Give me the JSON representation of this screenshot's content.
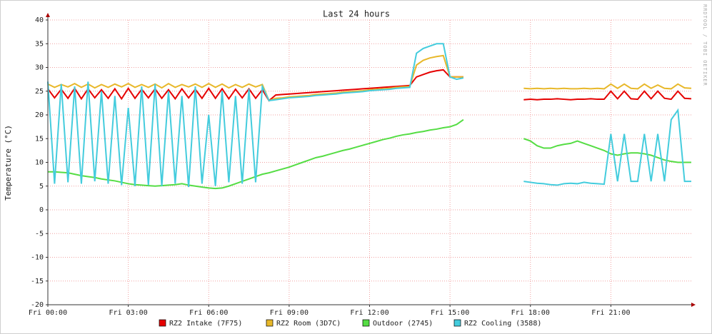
{
  "chart_data": {
    "type": "line",
    "title": "Last 24 hours",
    "y_label": "Temperature (°C)",
    "watermark": "RRDTOOL / TOBI OETIKER",
    "grid": true,
    "xlim": [
      0,
      24
    ],
    "xticks": [
      {
        "value": 0,
        "label": "Fri 00:00"
      },
      {
        "value": 3,
        "label": "Fri 03:00"
      },
      {
        "value": 6,
        "label": "Fri 06:00"
      },
      {
        "value": 9,
        "label": "Fri 09:00"
      },
      {
        "value": 12,
        "label": "Fri 12:00"
      },
      {
        "value": 15,
        "label": "Fri 15:00"
      },
      {
        "value": 18,
        "label": "Fri 18:00"
      },
      {
        "value": 21,
        "label": "Fri 21:00"
      }
    ],
    "ylim": [
      -20,
      40
    ],
    "yticks": [
      -20,
      -15,
      -10,
      -5,
      0,
      5,
      10,
      15,
      20,
      25,
      30,
      35,
      40
    ],
    "x": [
      0,
      0.25,
      0.5,
      0.75,
      1,
      1.25,
      1.5,
      1.75,
      2,
      2.25,
      2.5,
      2.75,
      3,
      3.25,
      3.5,
      3.75,
      4,
      4.25,
      4.5,
      4.75,
      5,
      5.25,
      5.5,
      5.75,
      6,
      6.25,
      6.5,
      6.75,
      7,
      7.25,
      7.5,
      7.75,
      8,
      8.25,
      8.5,
      8.75,
      9,
      9.25,
      9.5,
      9.75,
      10,
      10.25,
      10.5,
      10.75,
      11,
      11.25,
      11.5,
      11.75,
      12,
      12.25,
      12.5,
      12.75,
      13,
      13.25,
      13.5,
      13.75,
      14,
      14.25,
      14.5,
      14.75,
      15,
      15.25,
      15.5,
      15.75,
      16,
      16.25,
      16.5,
      16.75,
      17,
      17.25,
      17.5,
      17.75,
      18,
      18.25,
      18.5,
      18.75,
      19,
      19.25,
      19.5,
      19.75,
      20,
      20.25,
      20.5,
      20.75,
      21,
      21.25,
      21.5,
      21.75,
      22,
      22.25,
      22.5,
      22.75,
      23,
      23.25,
      23.5,
      23.75,
      24
    ],
    "series": [
      {
        "name": "RZ2 Intake (7F75)",
        "color": "#e60000",
        "values": [
          25.5,
          23.6,
          25.4,
          23.5,
          25.6,
          23.4,
          25.5,
          23.6,
          25.3,
          23.5,
          25.5,
          23.4,
          25.6,
          23.5,
          25.4,
          23.6,
          25.5,
          23.5,
          25.3,
          23.4,
          25.5,
          23.6,
          25.4,
          23.5,
          25.6,
          23.5,
          25.5,
          23.4,
          25.4,
          23.6,
          25.5,
          23.5,
          25.3,
          23,
          24.2,
          24.3,
          24.4,
          24.5,
          24.6,
          24.7,
          24.8,
          24.9,
          25.0,
          25.1,
          25.2,
          25.3,
          25.4,
          25.5,
          25.6,
          25.7,
          25.8,
          25.9,
          26.0,
          26.1,
          26.2,
          28,
          28.5,
          29,
          29.3,
          29.5,
          28,
          28,
          28,
          null,
          null,
          null,
          null,
          null,
          null,
          null,
          null,
          23.2,
          23.3,
          23.2,
          23.3,
          23.3,
          23.4,
          23.3,
          23.2,
          23.3,
          23.3,
          23.4,
          23.3,
          23.3,
          25,
          23.4,
          25,
          23.4,
          23.3,
          25,
          23.4,
          25,
          23.5,
          23.3,
          25,
          23.5,
          23.4
        ]
      },
      {
        "name": "RZ2 Room (3D7C)",
        "color": "#e8b82a",
        "values": [
          26.5,
          25.8,
          26.4,
          25.9,
          26.6,
          25.8,
          26.5,
          25.7,
          26.4,
          25.8,
          26.5,
          25.9,
          26.6,
          25.8,
          26.4,
          25.8,
          26.5,
          25.7,
          26.6,
          25.8,
          26.4,
          25.9,
          26.5,
          25.8,
          26.6,
          25.8,
          26.5,
          25.7,
          26.4,
          25.8,
          26.5,
          25.9,
          26.4,
          23,
          23.5,
          23.6,
          23.8,
          23.9,
          24.0,
          24.1,
          24.3,
          24.4,
          24.5,
          24.6,
          24.8,
          24.9,
          25.0,
          25.1,
          25.3,
          25.4,
          25.5,
          25.6,
          25.8,
          25.9,
          26.0,
          30.5,
          31.5,
          32,
          32.3,
          32.5,
          28,
          28,
          28,
          null,
          null,
          null,
          null,
          null,
          null,
          null,
          null,
          25.6,
          25.5,
          25.6,
          25.5,
          25.6,
          25.5,
          25.6,
          25.5,
          25.5,
          25.6,
          25.5,
          25.6,
          25.5,
          26.5,
          25.6,
          26.5,
          25.6,
          25.5,
          26.5,
          25.6,
          26.3,
          25.6,
          25.5,
          26.5,
          25.7,
          25.6
        ]
      },
      {
        "name": "Outdoor (2745)",
        "color": "#55dd44",
        "values": [
          8,
          8,
          7.9,
          7.8,
          7.5,
          7.2,
          7,
          6.8,
          6.5,
          6.3,
          6.1,
          5.8,
          5.5,
          5.3,
          5.2,
          5.1,
          5,
          5.1,
          5.2,
          5.3,
          5.5,
          5.2,
          5,
          4.8,
          4.6,
          4.5,
          4.6,
          5,
          5.5,
          6,
          6.5,
          7,
          7.5,
          7.8,
          8.2,
          8.6,
          9,
          9.5,
          10,
          10.5,
          11,
          11.3,
          11.7,
          12.1,
          12.5,
          12.8,
          13.2,
          13.6,
          14,
          14.4,
          14.8,
          15.1,
          15.5,
          15.8,
          16,
          16.3,
          16.5,
          16.8,
          17,
          17.3,
          17.5,
          18,
          19,
          null,
          null,
          null,
          null,
          null,
          null,
          null,
          null,
          15,
          14.5,
          13.5,
          13,
          13,
          13.5,
          13.8,
          14,
          14.5,
          14,
          13.5,
          13,
          12.5,
          11.8,
          11.5,
          11.8,
          12,
          12,
          11.8,
          11.5,
          11,
          10.5,
          10.2,
          10,
          10,
          10
        ]
      },
      {
        "name": "RZ2 Cooling (3588)",
        "color": "#44ccdd",
        "values": [
          27,
          5.5,
          26.5,
          5.8,
          26,
          5.5,
          27,
          6,
          25,
          5.5,
          24,
          5.2,
          21.5,
          5,
          26,
          5.2,
          26.5,
          5,
          25,
          5.5,
          24,
          4.8,
          26,
          5.5,
          20,
          5,
          25,
          5.8,
          24,
          5.5,
          25.5,
          5.8,
          26,
          23,
          23.2,
          23.4,
          23.6,
          23.7,
          23.8,
          23.9,
          24.1,
          24.2,
          24.3,
          24.4,
          24.6,
          24.7,
          24.8,
          24.9,
          25.1,
          25.2,
          25.3,
          25.4,
          25.6,
          25.7,
          25.8,
          33,
          34,
          34.5,
          35,
          35,
          28,
          27.5,
          27.8,
          null,
          null,
          null,
          null,
          null,
          null,
          null,
          null,
          6,
          5.8,
          5.6,
          5.5,
          5.3,
          5.2,
          5.5,
          5.6,
          5.5,
          5.8,
          5.6,
          5.5,
          5.4,
          16,
          6,
          16,
          6,
          6,
          16,
          6,
          16,
          6,
          19,
          21,
          6,
          6
        ]
      }
    ]
  }
}
